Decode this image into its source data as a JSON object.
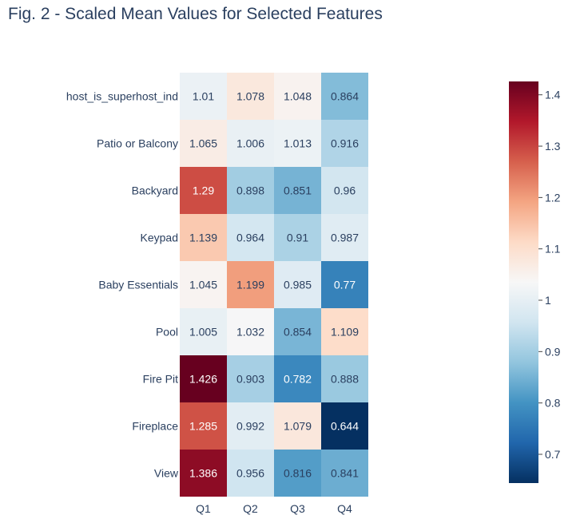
{
  "chart_data": {
    "type": "heatmap",
    "title": "Fig. 2 - Scaled Mean Values for Selected Features",
    "x_categories": [
      "Q1",
      "Q2",
      "Q3",
      "Q4"
    ],
    "y_categories": [
      "host_is_superhost_ind",
      "Patio or Balcony",
      "Backyard",
      "Keypad",
      "Baby Essentials",
      "Pool",
      "Fire Pit",
      "Fireplace",
      "View"
    ],
    "values": [
      [
        1.01,
        1.078,
        1.048,
        0.864
      ],
      [
        1.065,
        1.006,
        1.013,
        0.916
      ],
      [
        1.29,
        0.898,
        0.851,
        0.96
      ],
      [
        1.139,
        0.964,
        0.91,
        0.987
      ],
      [
        1.045,
        1.199,
        0.985,
        0.77
      ],
      [
        1.005,
        1.032,
        0.854,
        1.109
      ],
      [
        1.426,
        0.903,
        0.782,
        0.888
      ],
      [
        1.285,
        0.992,
        1.079,
        0.644
      ],
      [
        1.386,
        0.956,
        0.816,
        0.841
      ]
    ],
    "colorscale": "RdBu",
    "zmin": 0.644,
    "zmax": 1.426,
    "colorbar_ticks": [
      "0.7",
      "0.8",
      "0.9",
      "1",
      "1.1",
      "1.2",
      "1.3",
      "1.4"
    ],
    "colorbar_tick_values": [
      0.7,
      0.8,
      0.9,
      1.0,
      1.1,
      1.2,
      1.3,
      1.4
    ],
    "legend_position": "right"
  }
}
